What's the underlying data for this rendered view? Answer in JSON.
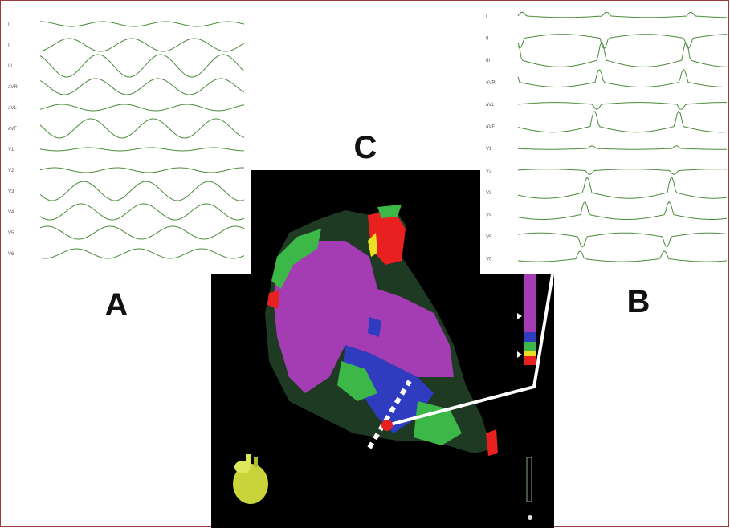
{
  "panels": {
    "a": {
      "label": "A",
      "leads": [
        "I",
        "II",
        "III",
        "aVR",
        "aVL",
        "aVF",
        "V1",
        "V2",
        "V3",
        "V4",
        "V5",
        "V6"
      ]
    },
    "b": {
      "label": "B",
      "leads": [
        "I",
        "II",
        "III",
        "aVR",
        "aVL",
        "aVF",
        "V1",
        "V2",
        "V3",
        "V4",
        "V5",
        "V6"
      ]
    },
    "c": {
      "label": "C"
    }
  }
}
